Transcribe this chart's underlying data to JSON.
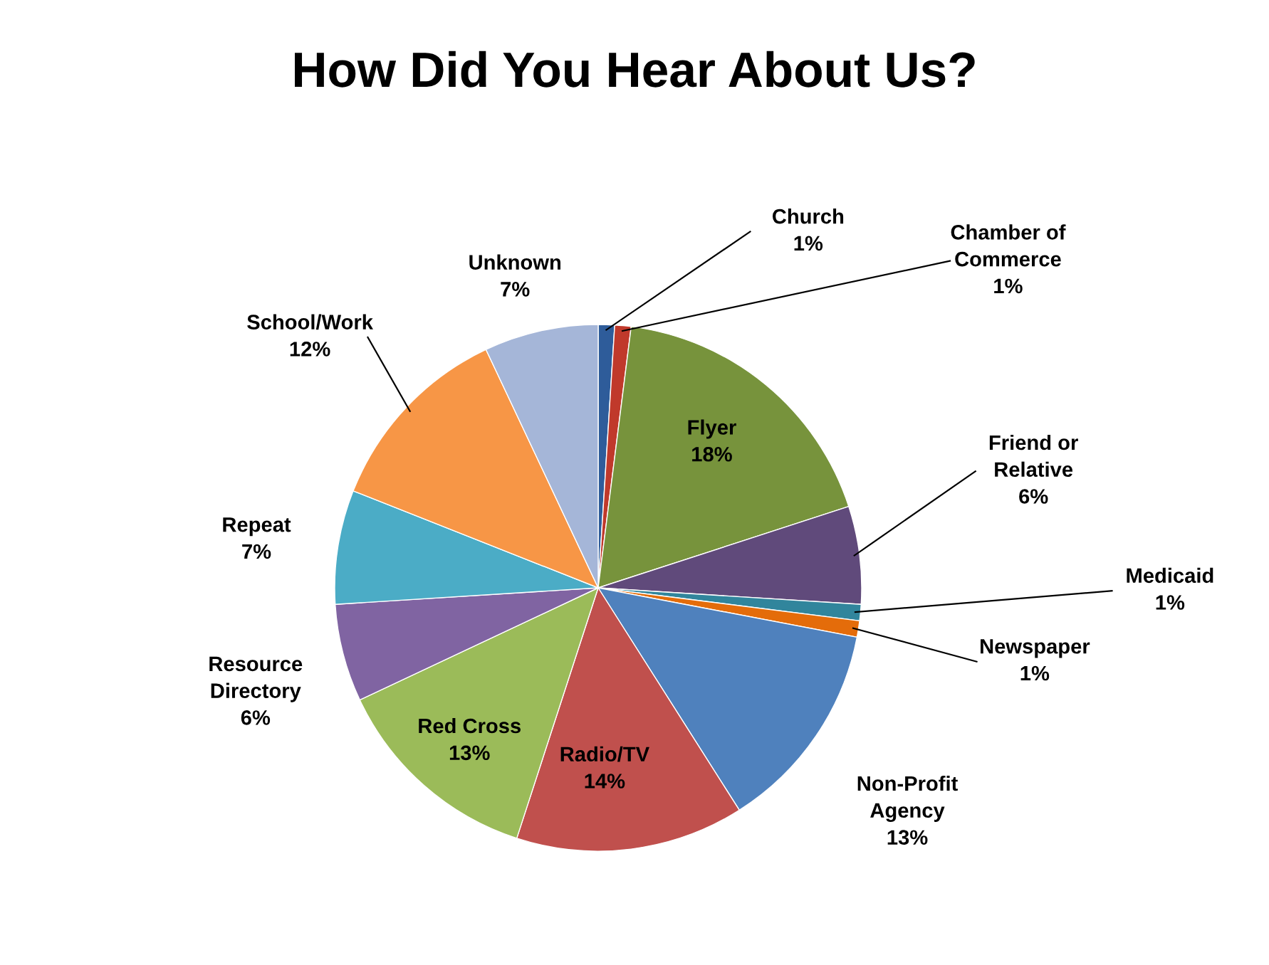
{
  "chart_data": {
    "type": "pie",
    "title": "How Did You Hear About Us?",
    "categories": [
      "Church",
      "Chamber of\nCommerce",
      "Flyer",
      "Friend or\nRelative",
      "Medicaid",
      "Newspaper",
      "Non-Profit\nAgency",
      "Radio/TV",
      "Red Cross",
      "Resource\nDirectory",
      "Repeat",
      "School/Work",
      "Unknown"
    ],
    "values": [
      1,
      1,
      18,
      6,
      1,
      1,
      13,
      14,
      13,
      6,
      7,
      12,
      7
    ],
    "colors": [
      "#2e5c9a",
      "#c0392b",
      "#77933c",
      "#604a7b",
      "#31859c",
      "#e46c0a",
      "#4f81bd",
      "#c0504d",
      "#9bbb59",
      "#8064a2",
      "#4bacc6",
      "#f79646",
      "#a5b6d8"
    ],
    "value_labels": [
      "1%",
      "1%",
      "18%",
      "6%",
      "1%",
      "1%",
      "13%",
      "14%",
      "13%",
      "6%",
      "7%",
      "12%",
      "7%"
    ],
    "legend": false
  }
}
